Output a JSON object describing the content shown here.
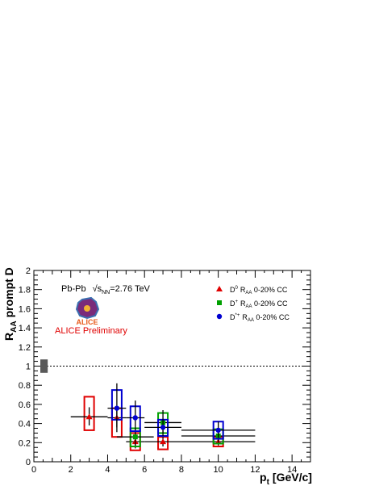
{
  "chart_data": {
    "type": "scatter",
    "xlabel_main": "p",
    "xlabel_sub": "t",
    "xlabel_unit": "[GeV/c]",
    "ylabel_main": "R",
    "ylabel_sub": "AA",
    "ylabel_rest": "prompt D",
    "xlim": [
      0,
      15
    ],
    "ylim": [
      0,
      2
    ],
    "x_ticks": [
      0,
      2,
      4,
      6,
      8,
      10,
      12,
      14
    ],
    "y_ticks": [
      0,
      0.2,
      0.4,
      0.6,
      0.8,
      1,
      1.2,
      1.4,
      1.6,
      1.8,
      2
    ],
    "reference_line": 1,
    "normalization_box": {
      "x": [
        0.35,
        0.75
      ],
      "y": [
        0.93,
        1.07
      ],
      "color": "#595959"
    },
    "annotations": {
      "system": "Pb-Pb",
      "energy_prefix": "√s",
      "energy_sub": "NN",
      "energy_value": "=2.76 TeV",
      "preliminary": "ALICE Preliminary",
      "logo_text": "ALICE"
    },
    "series": [
      {
        "name": "D⁰ R_AA 0-20% CC",
        "legend_main": "D",
        "legend_sup": "0",
        "legend_r": "R",
        "legend_sub": "AA",
        "legend_rest": " 0-20% CC",
        "color": "#e00000",
        "marker": "triangle",
        "points": [
          {
            "x": 3.0,
            "y": 0.47,
            "xerr": [
              2.0,
              4.0
            ],
            "yerr": [
              0.38,
              0.57
            ],
            "sys": [
              0.33,
              0.68
            ]
          },
          {
            "x": 4.5,
            "y": 0.46,
            "xerr": [
              4.0,
              5.0
            ],
            "yerr": [
              0.36,
              0.56
            ],
            "sys": [
              0.26,
              0.56
            ]
          },
          {
            "x": 5.5,
            "y": 0.21,
            "xerr": [
              5.0,
              6.0
            ],
            "yerr": [
              0.14,
              0.29
            ],
            "sys": [
              0.12,
              0.3
            ]
          },
          {
            "x": 7.0,
            "y": 0.21,
            "xerr": [
              6.0,
              8.0
            ],
            "yerr": [
              0.16,
              0.26
            ],
            "sys": [
              0.13,
              0.26
            ]
          },
          {
            "x": 10.0,
            "y": 0.21,
            "xerr": [
              8.0,
              12.0
            ],
            "yerr": [
              0.17,
              0.25
            ],
            "sys": [
              0.16,
              0.26
            ]
          }
        ]
      },
      {
        "name": "D⁺ R_AA 0-20% CC",
        "legend_main": "D",
        "legend_sup": "+",
        "legend_r": "R",
        "legend_sub": "AA",
        "legend_rest": " 0-20% CC",
        "color": "#00a000",
        "marker": "square",
        "points": [
          {
            "x": 5.5,
            "y": 0.26,
            "xerr": [
              4.5,
              6.5
            ],
            "yerr": [
              0.17,
              0.35
            ],
            "sys": [
              0.16,
              0.35
            ]
          },
          {
            "x": 7.0,
            "y": 0.41,
            "xerr": [
              6.0,
              8.0
            ],
            "yerr": [
              0.3,
              0.54
            ],
            "sys": [
              0.3,
              0.51
            ]
          },
          {
            "x": 10.0,
            "y": 0.27,
            "xerr": [
              8.0,
              12.0
            ],
            "yerr": [
              0.2,
              0.34
            ],
            "sys": [
              0.19,
              0.34
            ]
          }
        ]
      },
      {
        "name": "D*⁺ R_AA 0-20% CC",
        "legend_main": "D",
        "legend_sup": "*+",
        "legend_r": "R",
        "legend_sub": "AA",
        "legend_rest": " 0-20% CC",
        "color": "#0000d0",
        "marker": "circle",
        "points": [
          {
            "x": 4.5,
            "y": 0.56,
            "xerr": [
              4.0,
              5.0
            ],
            "yerr": [
              0.31,
              0.82
            ],
            "sys": [
              0.44,
              0.75
            ]
          },
          {
            "x": 5.5,
            "y": 0.46,
            "xerr": [
              5.0,
              6.0
            ],
            "yerr": [
              0.33,
              0.64
            ],
            "sys": [
              0.32,
              0.58
            ]
          },
          {
            "x": 7.0,
            "y": 0.36,
            "xerr": [
              6.0,
              8.0
            ],
            "yerr": [
              0.27,
              0.45
            ],
            "sys": [
              0.27,
              0.44
            ]
          },
          {
            "x": 10.0,
            "y": 0.33,
            "xerr": [
              8.0,
              12.0
            ],
            "yerr": [
              0.25,
              0.42
            ],
            "sys": [
              0.24,
              0.42
            ]
          }
        ]
      }
    ]
  }
}
